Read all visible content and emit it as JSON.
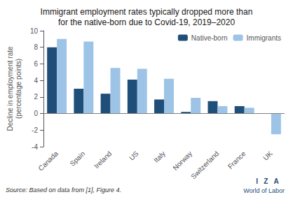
{
  "chart_data": {
    "type": "bar",
    "title": "Immigrant employment rates typically dropped more than\nfor the native-born due to Covid-19, 2019–2020",
    "categories": [
      "Canada",
      "Spain",
      "Ireland",
      "US",
      "Italy",
      "Norway",
      "Switzerland",
      "France",
      "UK"
    ],
    "series": [
      {
        "name": "Native-born",
        "color": "#1f4e79",
        "values": [
          8.0,
          3.0,
          2.4,
          4.1,
          1.7,
          0.2,
          1.5,
          0.9,
          0.0
        ]
      },
      {
        "name": "Immigrants",
        "color": "#9dc3e6",
        "values": [
          9.0,
          8.7,
          5.5,
          5.4,
          4.2,
          1.9,
          0.9,
          0.7,
          -2.5
        ]
      }
    ],
    "ylabel": "Decline in employment rate\n(percentage points)",
    "ylim": [
      -4,
      10
    ],
    "yticks": [
      -4,
      -2,
      0,
      2,
      4,
      6,
      8,
      10
    ],
    "grid": false,
    "legend": "upper right",
    "annotations": [
      "Source: Based on data from [1], Figure 4.",
      "I   Z   A",
      "World of Labor"
    ]
  }
}
